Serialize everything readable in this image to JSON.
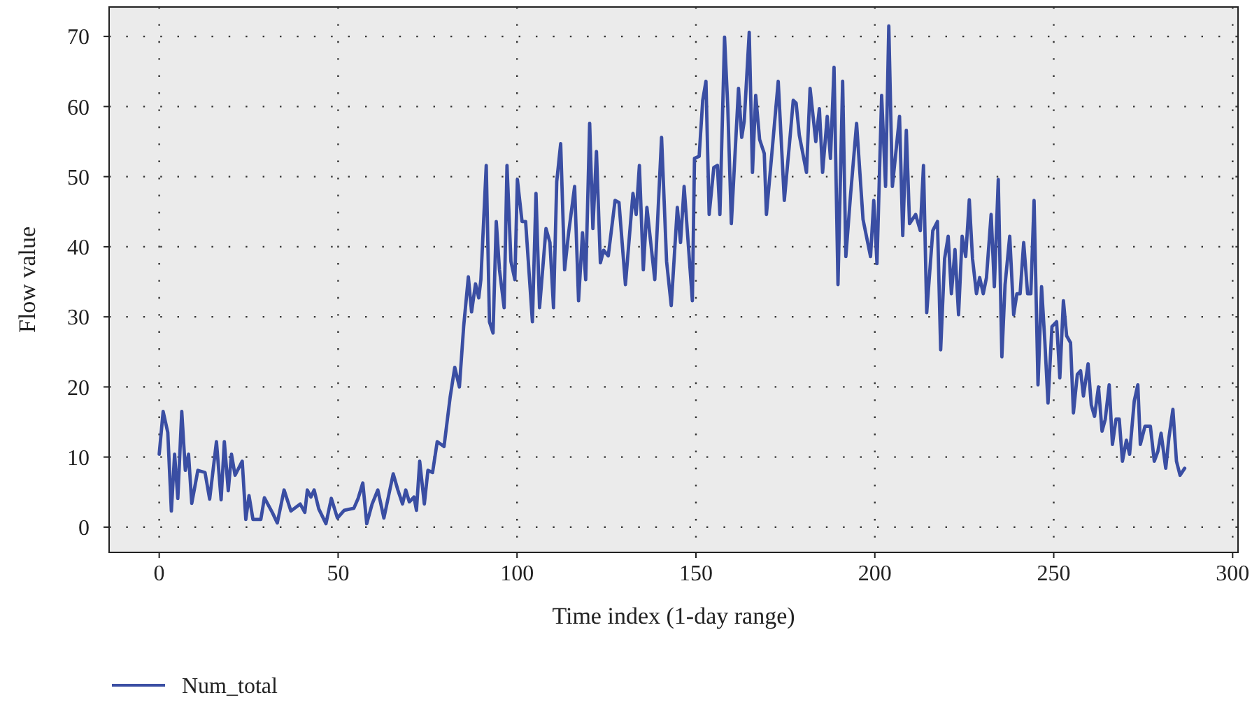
{
  "chart_data": {
    "type": "line",
    "xlabel": "Time index (1-day range)",
    "ylabel": "Flow value",
    "xlim": [
      -14,
      301.5
    ],
    "ylim": [
      -3.6,
      74.2
    ],
    "xticks": [
      0,
      50,
      100,
      150,
      200,
      250,
      300
    ],
    "yticks": [
      0,
      10,
      20,
      30,
      40,
      50,
      60,
      70
    ],
    "grid": true,
    "legend": "bottom left",
    "line_style": "solid",
    "marker": "none",
    "series": [
      {
        "name": "Num_total",
        "color": "#3a4ea3",
        "x": [
          0,
          1.1,
          2.4,
          3.4,
          4.3,
          5.2,
          6.3,
          7.3,
          8.2,
          9.1,
          10.8,
          12.8,
          14.1,
          16,
          17.3,
          18.2,
          19.3,
          20.2,
          21.2,
          23.2,
          24.2,
          25.1,
          26.2,
          28.4,
          29.4,
          31.6,
          33,
          34.9,
          36.8,
          39.4,
          40.7,
          41.4,
          42.4,
          43.3,
          44.6,
          46.6,
          48.1,
          49.8,
          51.7,
          54.4,
          55.6,
          56.9,
          58,
          59.5,
          61.1,
          62.8,
          65.4,
          66.7,
          68,
          68.9,
          69.9,
          71.2,
          71.9,
          72.8,
          74.1,
          75.1,
          76.4,
          77.7,
          79.6,
          81.3,
          82.6,
          83.9,
          85.1,
          86.4,
          87.3,
          88.4,
          89.3,
          89.9,
          91.4,
          92.3,
          93.3,
          94.2,
          95.1,
          96.4,
          97.2,
          98.3,
          99.4,
          100.1,
          101.4,
          102.4,
          104.3,
          105.3,
          106.3,
          108.1,
          109.2,
          110.2,
          111.1,
          112.2,
          113.3,
          114.4,
          116.1,
          117.2,
          118.3,
          119.2,
          120.3,
          121.2,
          122.2,
          123.3,
          124.2,
          125.5,
          127.4,
          128.5,
          130.3,
          132.4,
          133.3,
          134.2,
          135.3,
          136.3,
          138.5,
          140.4,
          141.8,
          143.1,
          144.8,
          145.7,
          146.7,
          149,
          149.6,
          150.9,
          151.9,
          152.8,
          153.7,
          155,
          156,
          156.7,
          158,
          158.9,
          159.9,
          161.9,
          162.8,
          163.5,
          164.9,
          165.8,
          166.7,
          167.8,
          169.1,
          169.7,
          171.1,
          173,
          174.7,
          176.3,
          177.2,
          178,
          178.9,
          180.9,
          181.9,
          183.5,
          184.5,
          185.4,
          186.7,
          187.6,
          188.6,
          189.7,
          191,
          191.9,
          193.2,
          194.9,
          196.7,
          198.8,
          199.7,
          200.6,
          201.9,
          203,
          203.9,
          204.9,
          206.9,
          207.8,
          208.8,
          209.7,
          211.4,
          212.7,
          213.6,
          214.5,
          216.2,
          217.5,
          218.4,
          219.5,
          220.5,
          221.4,
          222.4,
          223.4,
          224.4,
          225.4,
          226.4,
          227.3,
          228.4,
          229.3,
          230.3,
          231.2,
          232.5,
          233.4,
          234.5,
          235.5,
          236.4,
          237.7,
          238.8,
          239.7,
          240.6,
          241.6,
          242.7,
          243.6,
          244.5,
          245.6,
          246.6,
          247.5,
          248.4,
          249.5,
          250.8,
          251.7,
          252.7,
          253.6,
          254.7,
          255.5,
          256.6,
          257.5,
          258.3,
          259.6,
          260.5,
          261.4,
          262.5,
          263.5,
          264.4,
          265.5,
          266.4,
          267.4,
          268.3,
          269.2,
          270.3,
          271.2,
          272.5,
          273.5,
          274.2,
          275.5,
          277,
          278.1,
          279.1,
          280,
          281.3,
          282.2,
          283.3,
          284.3,
          285.3,
          286.6
        ],
        "values": [
          10.4,
          16.5,
          13.5,
          2.3,
          10.4,
          4.1,
          16.5,
          8.1,
          10.4,
          3.4,
          8.1,
          7.8,
          4,
          12.2,
          3.9,
          12.2,
          5.2,
          10.4,
          7.4,
          9.4,
          1.1,
          4.5,
          1.1,
          1.1,
          4.2,
          2.1,
          0.6,
          5.3,
          2.3,
          3.3,
          2.1,
          5.3,
          4.3,
          5.3,
          2.6,
          0.5,
          4.1,
          1.3,
          2.4,
          2.7,
          4.1,
          6.3,
          0.5,
          3.3,
          5.3,
          1.3,
          7.6,
          5.3,
          3.3,
          5.3,
          3.6,
          4.3,
          2.4,
          9.4,
          3.3,
          8.1,
          7.8,
          12.2,
          11.5,
          18.5,
          22.8,
          20,
          28.7,
          35.7,
          30.7,
          34.7,
          32.7,
          35.3,
          51.6,
          29.3,
          27.7,
          43.6,
          36.7,
          31.3,
          51.6,
          37.9,
          35.3,
          49.6,
          43.6,
          43.6,
          29.3,
          47.6,
          31.3,
          42.6,
          40.6,
          31.3,
          49.3,
          54.7,
          36.7,
          41.9,
          48.6,
          32.3,
          42,
          35.3,
          57.6,
          42.6,
          53.6,
          37.7,
          39.5,
          38.7,
          46.6,
          46.3,
          34.6,
          47.6,
          44.6,
          51.6,
          36.7,
          45.6,
          35.3,
          55.6,
          37.9,
          31.6,
          45.6,
          40.6,
          48.6,
          32.3,
          52.6,
          52.9,
          60.9,
          63.6,
          44.6,
          51.3,
          51.6,
          44.6,
          69.9,
          60,
          43.3,
          62.6,
          55.6,
          57.9,
          70.6,
          50.6,
          61.6,
          55.3,
          53.3,
          44.6,
          52.6,
          63.6,
          46.6,
          55.6,
          60.9,
          60.5,
          55.9,
          50.6,
          62.6,
          55,
          59.7,
          50.6,
          58.6,
          52.6,
          65.6,
          34.6,
          63.6,
          38.6,
          47.3,
          57.6,
          43.9,
          38.6,
          46.6,
          37.6,
          61.6,
          48.6,
          71.5,
          48.6,
          58.6,
          41.6,
          56.6,
          43.3,
          44.6,
          42.3,
          51.6,
          30.6,
          42.3,
          43.6,
          25.3,
          38.3,
          41.5,
          33.3,
          39.6,
          30.3,
          41.5,
          38.6,
          46.7,
          38.3,
          33.3,
          35.6,
          33.3,
          35.6,
          44.6,
          34.3,
          49.6,
          24.3,
          34.6,
          41.5,
          30.3,
          33.3,
          33.3,
          40.6,
          33.3,
          33.3,
          46.6,
          20.3,
          34.3,
          26.6,
          17.7,
          28.6,
          29.3,
          21.3,
          32.3,
          27.3,
          26.3,
          16.3,
          21.8,
          22.3,
          18.7,
          23.3,
          17.4,
          15.8,
          20,
          13.7,
          15.4,
          20.3,
          11.8,
          15.4,
          15.4,
          9.4,
          12.4,
          10.4,
          18,
          20.3,
          11.8,
          14.4,
          14.4,
          9.4,
          10.8,
          13.4,
          8.4,
          12.8,
          16.8,
          9.4,
          7.4,
          8.4
        ]
      }
    ]
  }
}
